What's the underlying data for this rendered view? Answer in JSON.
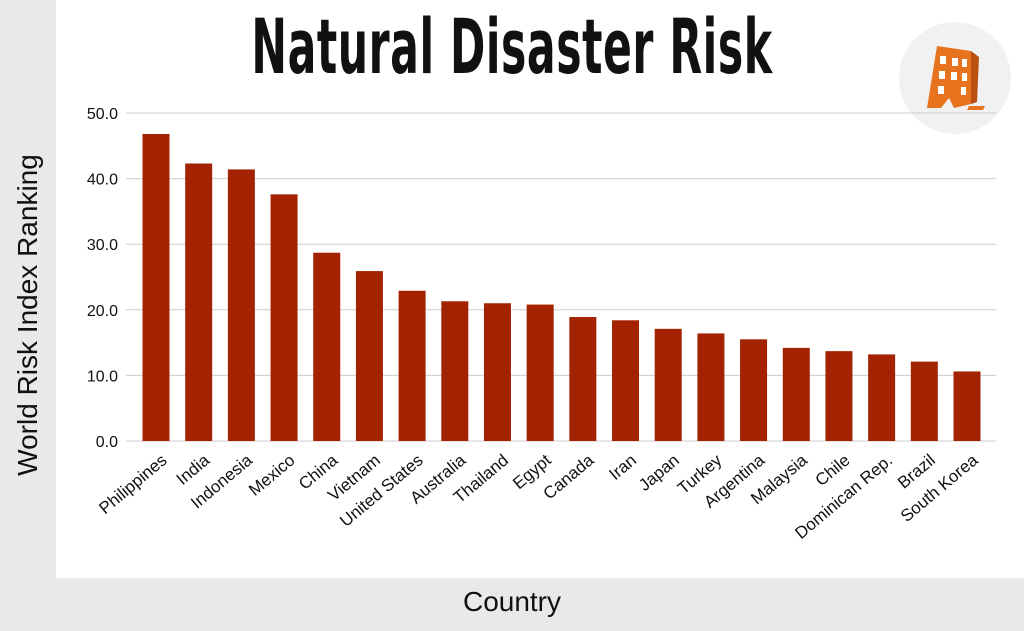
{
  "title": "Natural Disaster Risk",
  "icon": "collapsing-building-icon",
  "colors": {
    "bar": "#a32200",
    "grid": "#cccccc",
    "panel": "#ffffff",
    "frame": "#e9e9e9",
    "icon_orange": "#e8731f"
  },
  "chart_data": {
    "type": "bar",
    "title": "Natural Disaster Risk",
    "xlabel": "Country",
    "ylabel": "World Risk Index Ranking",
    "ylim": [
      0,
      50
    ],
    "yticks": [
      "0.0",
      "10.0",
      "20.0",
      "30.0",
      "40.0",
      "50.0"
    ],
    "grid": true,
    "categories": [
      "Philippines",
      "India",
      "Indonesia",
      "Mexico",
      "China",
      "Vietnam",
      "United States",
      "Australia",
      "Thailand",
      "Egypt",
      "Canada",
      "Iran",
      "Japan",
      "Turkey",
      "Argentina",
      "Malaysia",
      "Chile",
      "Dominican Rep.",
      "Brazil",
      "South Korea"
    ],
    "values": [
      46.8,
      42.3,
      41.4,
      37.6,
      28.7,
      25.9,
      22.9,
      21.3,
      21.0,
      20.8,
      18.9,
      18.4,
      17.1,
      16.4,
      15.5,
      14.2,
      13.7,
      13.2,
      12.1,
      10.6
    ]
  }
}
